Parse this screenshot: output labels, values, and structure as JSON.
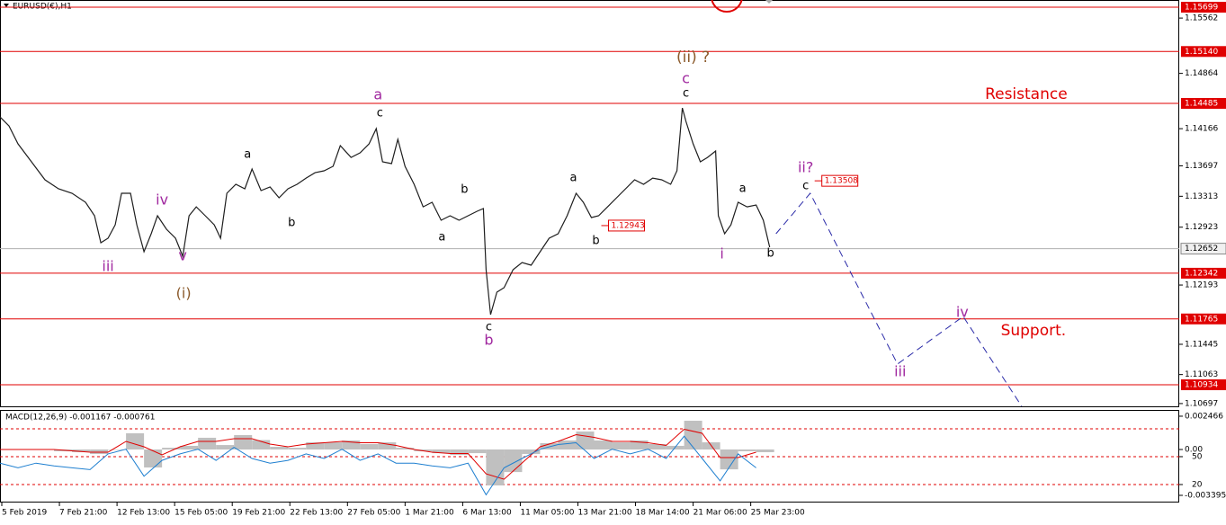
{
  "chart_data": [
    {
      "type": "line",
      "title": "EURUSD(€),H1",
      "xlim": [
        0,
        1310
      ],
      "ylim": [
        1.10662,
        1.1579
      ],
      "xticks": [
        {
          "value": 2,
          "label": "5 Feb 2019"
        },
        {
          "value": 66,
          "label": "7 Feb 21:00"
        },
        {
          "value": 130,
          "label": "12 Feb 13:00"
        },
        {
          "value": 194,
          "label": "15 Feb 05:00"
        },
        {
          "value": 258,
          "label": "19 Feb 21:00"
        },
        {
          "value": 322,
          "label": "22 Feb 13:00"
        },
        {
          "value": 386,
          "label": "27 Feb 05:00"
        },
        {
          "value": 450,
          "label": "1 Mar 21:00"
        },
        {
          "value": 514,
          "label": "6 Mar 13:00"
        },
        {
          "value": 578,
          "label": "11 Mar 05:00"
        },
        {
          "value": 642,
          "label": "13 Mar 21:00"
        },
        {
          "value": 706,
          "label": "18 Mar 14:00"
        },
        {
          "value": 770,
          "label": "21 Mar 06:00"
        },
        {
          "value": 834,
          "label": "25 Mar 23:00"
        }
      ],
      "yticks": [
        1.15562,
        1.14864,
        1.14166,
        1.13697,
        1.13313,
        1.12923,
        1.12193,
        1.11445,
        1.11063,
        1.10697
      ],
      "levels": [
        1.15699,
        {
          "value": 1.1514,
          "label": "1.15140"
        },
        1.14485,
        1.12342,
        1.11765,
        1.10934
      ],
      "level_color": "#e00000",
      "current": 1.12652,
      "series": [
        {
          "color": "#1e1e1e",
          "x": [
            0,
            10,
            20,
            35,
            50,
            65,
            80,
            95,
            105,
            112,
            120,
            128,
            135,
            145,
            152,
            160,
            168,
            175,
            185,
            195,
            203,
            210,
            218,
            228,
            238,
            245,
            252,
            262,
            272,
            280,
            290,
            300,
            310,
            320,
            330,
            340,
            350,
            360,
            370,
            378,
            390,
            400,
            410,
            418,
            425,
            435,
            442,
            450,
            460,
            470,
            480,
            490,
            500,
            510,
            520,
            530,
            537,
            540,
            545,
            552,
            560,
            570,
            580,
            590,
            600,
            610,
            620,
            630,
            640,
            648,
            657,
            665,
            675,
            685,
            695,
            705,
            715,
            725,
            735,
            745,
            752,
            758,
            762,
            770,
            778,
            786,
            795,
            798,
            805,
            812,
            820,
            830,
            840,
            848,
            855
          ],
          "values": [
            1.14315,
            1.14201,
            1.13975,
            1.13748,
            1.13521,
            1.13407,
            1.13351,
            1.13237,
            1.13067,
            1.12727,
            1.12783,
            1.12953,
            1.13351,
            1.13351,
            1.12953,
            1.12613,
            1.1284,
            1.13067,
            1.12897,
            1.12783,
            1.12556,
            1.13067,
            1.1318,
            1.13067,
            1.12953,
            1.12783,
            1.13351,
            1.13464,
            1.13407,
            1.13657,
            1.13385,
            1.1343,
            1.13294,
            1.13407,
            1.13464,
            1.13543,
            1.13611,
            1.13634,
            1.13691,
            1.13952,
            1.13804,
            1.13861,
            1.13975,
            1.14167,
            1.13748,
            1.13725,
            1.14031,
            1.13691,
            1.13464,
            1.1318,
            1.13237,
            1.1301,
            1.13067,
            1.1301,
            1.13067,
            1.13124,
            1.13158,
            1.12386,
            1.11819,
            1.12103,
            1.12159,
            1.12386,
            1.12477,
            1.12443,
            1.12613,
            1.12783,
            1.1284,
            1.13067,
            1.13351,
            1.13237,
            1.13044,
            1.13067,
            1.1318,
            1.13294,
            1.13407,
            1.13521,
            1.13464,
            1.13543,
            1.13521,
            1.13464,
            1.13634,
            1.14428,
            1.14258,
            1.13975,
            1.13748,
            1.13804,
            1.13884,
            1.13067,
            1.1284,
            1.12953,
            1.13237,
            1.1318,
            1.13203,
            1.1301,
            1.1267
          ]
        },
        {
          "color": "#2a2aa8",
          "dashed": true,
          "x": [
            862,
            900,
            997,
            1070,
            1135
          ],
          "values": [
            1.1284,
            1.13351,
            1.11195,
            1.11796,
            1.10662
          ]
        }
      ],
      "annotations": [
        {
          "text": "iii",
          "x": 120,
          "y": 1.1242,
          "color": "#a0289f"
        },
        {
          "text": "iv",
          "x": 180,
          "y": 1.1326,
          "color": "#a0289f"
        },
        {
          "text": "v",
          "x": 203,
          "y": 1.12556,
          "color": "#a0289f"
        },
        {
          "text": "(i)",
          "x": 204,
          "y": 1.1208,
          "color": "#8b5a2b"
        },
        {
          "text": "a",
          "x": 275,
          "y": 1.13838,
          "color": "#000000"
        },
        {
          "text": "b",
          "x": 324,
          "y": 1.12976,
          "color": "#000000"
        },
        {
          "text": "a",
          "x": 420,
          "y": 1.14587,
          "color": "#a0289f"
        },
        {
          "text": "c",
          "x": 422,
          "y": 1.1436,
          "color": "#000000"
        },
        {
          "text": "a",
          "x": 491,
          "y": 1.12795,
          "color": "#000000"
        },
        {
          "text": "b",
          "x": 516,
          "y": 1.13396,
          "color": "#000000"
        },
        {
          "text": "c",
          "x": 543,
          "y": 1.1166,
          "color": "#000000"
        },
        {
          "text": "b",
          "x": 543,
          "y": 1.1149,
          "color": "#a0289f"
        },
        {
          "text": "a",
          "x": 637,
          "y": 1.13543,
          "color": "#000000"
        },
        {
          "text": "b",
          "x": 662,
          "y": 1.12749,
          "color": "#000000"
        },
        {
          "text": "(ii) ?",
          "x": 770,
          "y": 1.15064,
          "color": "#8b5a2b"
        },
        {
          "text": "c",
          "x": 762,
          "y": 1.14791,
          "color": "#a0289f"
        },
        {
          "text": "c",
          "x": 762,
          "y": 1.1461,
          "color": "#000000"
        },
        {
          "text": "a",
          "x": 825,
          "y": 1.13407,
          "color": "#000000"
        },
        {
          "text": "i",
          "x": 802,
          "y": 1.12579,
          "color": "#a0289f"
        },
        {
          "text": "b",
          "x": 856,
          "y": 1.1259,
          "color": "#000000"
        },
        {
          "text": "ii?",
          "x": 895,
          "y": 1.13668,
          "color": "#a0289f"
        },
        {
          "text": "c",
          "x": 895,
          "y": 1.13441,
          "color": "#000000"
        },
        {
          "text": "iii",
          "x": 1000,
          "y": 1.11093,
          "color": "#a0289f"
        },
        {
          "text": "iv",
          "x": 1069,
          "y": 1.11842,
          "color": "#a0289f"
        },
        {
          "text": "Resistance",
          "x": 1140,
          "y": 1.14599,
          "color": "#e00000"
        },
        {
          "text": "Support.",
          "x": 1148,
          "y": 1.11615,
          "color": "#e00000"
        }
      ],
      "price_labels": [
        {
          "x": 668,
          "value": 1.12943
        },
        {
          "x": 905,
          "value": 1.13508
        }
      ]
    },
    {
      "type": "macd",
      "title": "MACD(12,26,9) -0.001167 -0.000761",
      "ylim": [
        -0.00386,
        0.00293
      ],
      "y2lim": [
        1.6,
        100.3
      ],
      "yticks": [
        0.002466,
        {
          "value": 0,
          "label": "0.00"
        },
        -0.003395
      ],
      "y2ticks": [
        50,
        20
      ],
      "levels": [
        80,
        50,
        20
      ],
      "level_color": "#e00000",
      "x": [
        0,
        20,
        40,
        60,
        80,
        100,
        120,
        140,
        160,
        180,
        200,
        220,
        240,
        260,
        280,
        300,
        320,
        340,
        360,
        380,
        400,
        420,
        440,
        460,
        480,
        500,
        520,
        540,
        560,
        580,
        600,
        620,
        640,
        660,
        680,
        700,
        720,
        740,
        760,
        780,
        800,
        820,
        840
      ],
      "series": [
        {
          "kind": "bar",
          "color": "#c0c0c0",
          "values": [
            0,
            0,
            0,
            -0.00013,
            -0.0002,
            -0.00033,
            0,
            0.0012,
            -0.00133,
            0.00013,
            0.00027,
            0.00087,
            0.00033,
            0.00107,
            0.0007,
            0.0002,
            0.00013,
            0.00053,
            0.00053,
            0.00067,
            0.0004,
            0.00053,
            0.00013,
            -0.00013,
            -0.00027,
            -0.0004,
            -0.00027,
            -0.00266,
            -0.00167,
            -0.00033,
            0.00047,
            0.00067,
            0.00133,
            0.00067,
            0.00053,
            0.00067,
            0.0004,
            0.00027,
            0.00213,
            0.00053,
            -0.00147,
            -0.00013,
            -0.0002
          ]
        },
        {
          "kind": "line",
          "color": "#e00000",
          "values": [
            0,
            0,
            0,
            0,
            -0.0001,
            -0.0002,
            -0.0002,
            0.0006,
            0.0002,
            -0.0004,
            0.0002,
            0.0006,
            0.0006,
            0.0008,
            0.0008,
            0.0004,
            0.0002,
            0.0004,
            0.0005,
            0.0006,
            0.0005,
            0.0005,
            0.0003,
            0,
            -0.0002,
            -0.0003,
            -0.0003,
            -0.0018,
            -0.0022,
            -0.001,
            0.0002,
            0.0006,
            0.0011,
            0.0009,
            0.0006,
            0.0006,
            0.0005,
            0.0003,
            0.0015,
            0.0012,
            -0.0006,
            -0.0006,
            -0.0002
          ]
        },
        {
          "kind": "line",
          "axis": "y2",
          "color": "#1e7fd0",
          "values": [
            43,
            38,
            43,
            40,
            38,
            36,
            53,
            58,
            29,
            46,
            53,
            58,
            46,
            60,
            48,
            43,
            46,
            53,
            48,
            58,
            46,
            53,
            43,
            43,
            40,
            38,
            43,
            9,
            38,
            48,
            58,
            63,
            65,
            48,
            58,
            53,
            58,
            48,
            72,
            48,
            24,
            53,
            38
          ]
        }
      ]
    }
  ]
}
